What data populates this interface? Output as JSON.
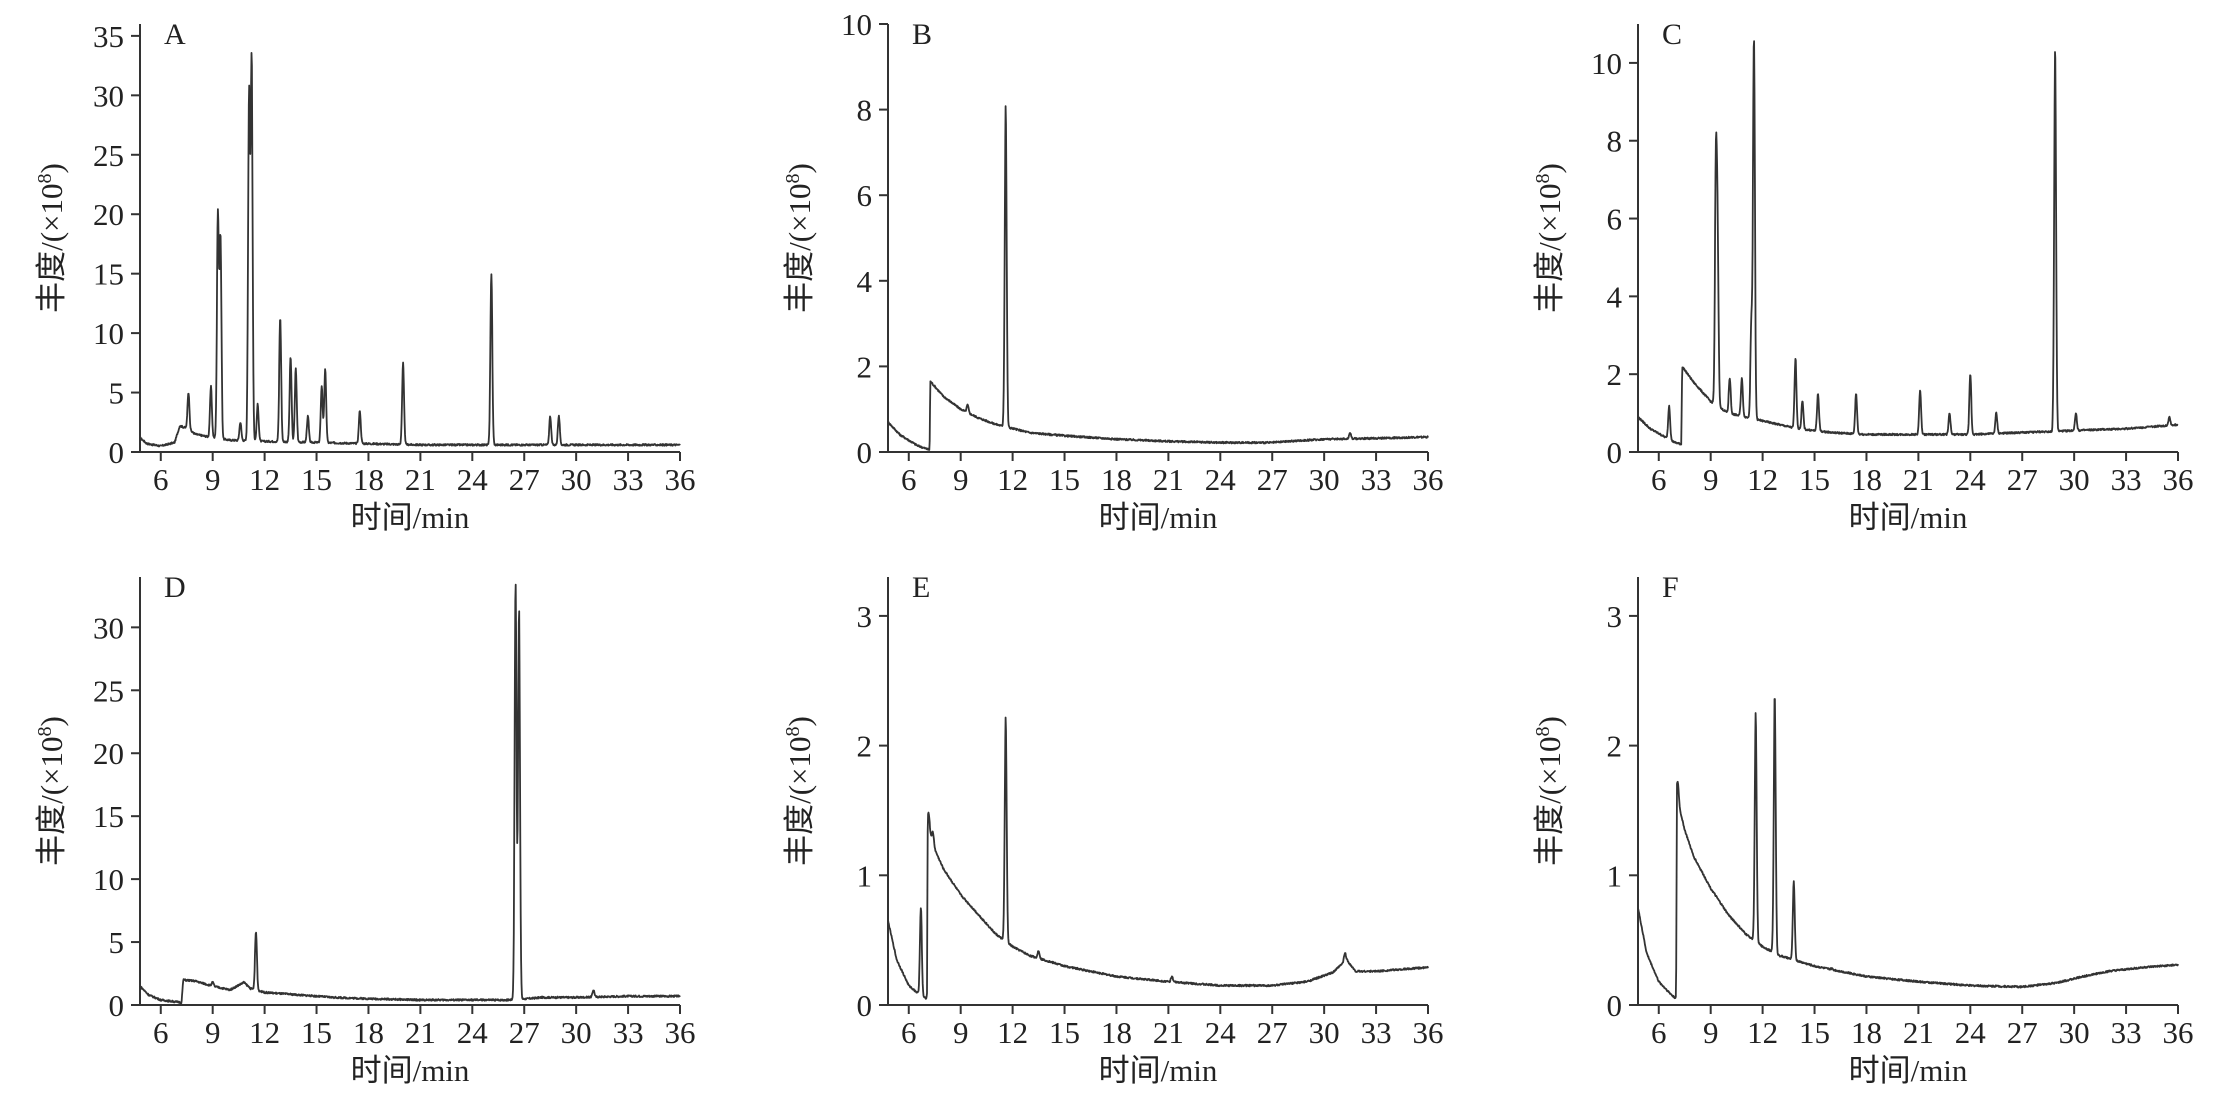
{
  "figure": {
    "axis_x_label": "时间/min",
    "axis_y_label_prefix": "丰度/",
    "axis_y_label_paren": "(×10",
    "axis_y_label_exp": "8",
    "axis_y_label_close": ")"
  },
  "chart_data": [
    {
      "type": "line",
      "panel": "A",
      "xlabel": "时间/min",
      "ylabel": "丰度/(×10⁸)",
      "xlim": [
        4.8,
        36
      ],
      "ylim": [
        0,
        36
      ],
      "x_ticks": [
        6,
        9,
        12,
        15,
        18,
        21,
        24,
        27,
        30,
        33,
        36
      ],
      "y_ticks": [
        0,
        5,
        10,
        15,
        20,
        25,
        30,
        35
      ],
      "baseline": [
        [
          4.8,
          1.2
        ],
        [
          5.2,
          0.7
        ],
        [
          6.0,
          0.5
        ],
        [
          6.8,
          0.8
        ],
        [
          7.1,
          2.2
        ],
        [
          7.5,
          2.0
        ],
        [
          8.0,
          1.5
        ],
        [
          9.0,
          1.2
        ],
        [
          10.0,
          1.0
        ],
        [
          12.0,
          0.9
        ],
        [
          15.0,
          0.8
        ],
        [
          18.0,
          0.7
        ],
        [
          21.0,
          0.6
        ],
        [
          24.0,
          0.6
        ],
        [
          27.0,
          0.6
        ],
        [
          30.0,
          0.6
        ],
        [
          33.0,
          0.6
        ],
        [
          36.0,
          0.6
        ]
      ],
      "peaks": [
        [
          7.6,
          5
        ],
        [
          8.9,
          5.5
        ],
        [
          9.3,
          20
        ],
        [
          9.45,
          18
        ],
        [
          10.6,
          2.5
        ],
        [
          11.1,
          30
        ],
        [
          11.25,
          33
        ],
        [
          11.6,
          4
        ],
        [
          12.9,
          11.3
        ],
        [
          13.5,
          8
        ],
        [
          13.8,
          7
        ],
        [
          14.5,
          3
        ],
        [
          15.3,
          5.5
        ],
        [
          15.5,
          7
        ],
        [
          17.5,
          3.5
        ],
        [
          20.0,
          7.5
        ],
        [
          25.1,
          15
        ],
        [
          28.5,
          3
        ],
        [
          29.0,
          3
        ]
      ]
    },
    {
      "type": "line",
      "panel": "B",
      "xlabel": "时间/min",
      "ylabel": "丰度/(×10⁸)",
      "xlim": [
        4.8,
        36
      ],
      "ylim": [
        0,
        10
      ],
      "x_ticks": [
        6,
        9,
        12,
        15,
        18,
        21,
        24,
        27,
        30,
        33,
        36
      ],
      "y_ticks": [
        0,
        2,
        4,
        6,
        8,
        10
      ],
      "baseline": [
        [
          4.8,
          0.7
        ],
        [
          5.5,
          0.4
        ],
        [
          6.5,
          0.15
        ],
        [
          7.2,
          0.05
        ],
        [
          7.25,
          1.65
        ],
        [
          8.0,
          1.3
        ],
        [
          9.0,
          1.0
        ],
        [
          10.0,
          0.8
        ],
        [
          11.0,
          0.65
        ],
        [
          12.0,
          0.55
        ],
        [
          13.0,
          0.45
        ],
        [
          15.0,
          0.38
        ],
        [
          18.0,
          0.3
        ],
        [
          21.0,
          0.25
        ],
        [
          24.0,
          0.22
        ],
        [
          27.0,
          0.22
        ],
        [
          28.0,
          0.25
        ],
        [
          30.0,
          0.3
        ],
        [
          33.0,
          0.32
        ],
        [
          36.0,
          0.35
        ]
      ],
      "peaks": [
        [
          9.4,
          1.1
        ],
        [
          11.6,
          8.1
        ],
        [
          31.5,
          0.45
        ]
      ]
    },
    {
      "type": "line",
      "panel": "C",
      "xlabel": "时间/min",
      "ylabel": "丰度/(×10⁸)",
      "xlim": [
        4.8,
        36
      ],
      "ylim": [
        0,
        11
      ],
      "x_ticks": [
        6,
        9,
        12,
        15,
        18,
        21,
        24,
        27,
        30,
        33,
        36
      ],
      "y_ticks": [
        0,
        2,
        4,
        6,
        8,
        10
      ],
      "baseline": [
        [
          4.8,
          0.9
        ],
        [
          5.5,
          0.6
        ],
        [
          6.3,
          0.4
        ],
        [
          6.9,
          0.25
        ],
        [
          7.3,
          0.2
        ],
        [
          7.35,
          2.2
        ],
        [
          8.0,
          1.8
        ],
        [
          9.0,
          1.3
        ],
        [
          10.0,
          1.0
        ],
        [
          11.0,
          0.9
        ],
        [
          12.0,
          0.8
        ],
        [
          14.0,
          0.6
        ],
        [
          16.0,
          0.5
        ],
        [
          18.0,
          0.45
        ],
        [
          21.0,
          0.45
        ],
        [
          24.0,
          0.45
        ],
        [
          27.0,
          0.5
        ],
        [
          30.0,
          0.55
        ],
        [
          33.0,
          0.6
        ],
        [
          36.0,
          0.7
        ]
      ],
      "peaks": [
        [
          6.6,
          1.2
        ],
        [
          9.3,
          7.2
        ],
        [
          9.4,
          5.2
        ],
        [
          10.1,
          1.9
        ],
        [
          10.8,
          1.9
        ],
        [
          11.5,
          10.6
        ],
        [
          11.35,
          3.3
        ],
        [
          13.9,
          2.4
        ],
        [
          14.3,
          1.3
        ],
        [
          15.2,
          1.5
        ],
        [
          17.4,
          1.5
        ],
        [
          21.1,
          1.6
        ],
        [
          22.8,
          1.0
        ],
        [
          24.0,
          2.0
        ],
        [
          25.5,
          1.0
        ],
        [
          28.9,
          10.4
        ],
        [
          30.1,
          1.0
        ],
        [
          35.5,
          0.9
        ]
      ]
    },
    {
      "type": "line",
      "panel": "D",
      "xlabel": "时间/min",
      "ylabel": "丰度/(×10⁸)",
      "xlim": [
        4.8,
        36
      ],
      "ylim": [
        0,
        34
      ],
      "x_ticks": [
        6,
        9,
        12,
        15,
        18,
        21,
        24,
        27,
        30,
        33,
        36
      ],
      "y_ticks": [
        0,
        5,
        10,
        15,
        20,
        25,
        30
      ],
      "baseline": [
        [
          4.8,
          1.5
        ],
        [
          5.3,
          0.8
        ],
        [
          6.0,
          0.4
        ],
        [
          7.2,
          0.2
        ],
        [
          7.3,
          2.0
        ],
        [
          8.0,
          1.9
        ],
        [
          9.0,
          1.5
        ],
        [
          10.0,
          1.2
        ],
        [
          10.8,
          1.8
        ],
        [
          11.2,
          1.3
        ],
        [
          12.0,
          1.0
        ],
        [
          14.0,
          0.8
        ],
        [
          16.0,
          0.6
        ],
        [
          18.0,
          0.5
        ],
        [
          21.0,
          0.4
        ],
        [
          24.0,
          0.4
        ],
        [
          26.0,
          0.4
        ],
        [
          27.2,
          0.5
        ],
        [
          28.0,
          0.6
        ],
        [
          30.0,
          0.6
        ],
        [
          33.0,
          0.7
        ],
        [
          36.0,
          0.7
        ]
      ],
      "peaks": [
        [
          9.0,
          1.8
        ],
        [
          11.5,
          5.8
        ],
        [
          26.5,
          33.5
        ],
        [
          26.7,
          31.5
        ],
        [
          31.0,
          1.2
        ]
      ]
    },
    {
      "type": "line",
      "panel": "E",
      "xlabel": "时间/min",
      "ylabel": "丰度/(×10⁸)",
      "xlim": [
        4.8,
        36
      ],
      "ylim": [
        0,
        3.3
      ],
      "x_ticks": [
        6,
        9,
        12,
        15,
        18,
        21,
        24,
        27,
        30,
        33,
        36
      ],
      "y_ticks": [
        0,
        1,
        2,
        3
      ],
      "baseline": [
        [
          4.8,
          0.65
        ],
        [
          5.3,
          0.35
        ],
        [
          6.0,
          0.15
        ],
        [
          6.8,
          0.06
        ],
        [
          7.05,
          0.05
        ],
        [
          7.1,
          1.38
        ],
        [
          7.5,
          1.2
        ],
        [
          8.0,
          1.05
        ],
        [
          9.0,
          0.85
        ],
        [
          10.0,
          0.7
        ],
        [
          11.0,
          0.55
        ],
        [
          12.0,
          0.45
        ],
        [
          13.0,
          0.38
        ],
        [
          15.0,
          0.3
        ],
        [
          18.0,
          0.22
        ],
        [
          21.0,
          0.18
        ],
        [
          24.0,
          0.15
        ],
        [
          27.0,
          0.15
        ],
        [
          29.0,
          0.18
        ],
        [
          30.5,
          0.25
        ],
        [
          31.3,
          0.35
        ],
        [
          31.8,
          0.26
        ],
        [
          33.0,
          0.26
        ],
        [
          36.0,
          0.29
        ]
      ],
      "peaks": [
        [
          6.7,
          0.75
        ],
        [
          7.15,
          1.48
        ],
        [
          7.4,
          1.33
        ],
        [
          10.8,
          0.58
        ],
        [
          11.6,
          2.22
        ],
        [
          13.5,
          0.42
        ],
        [
          21.2,
          0.22
        ],
        [
          31.2,
          0.4
        ]
      ]
    },
    {
      "type": "line",
      "panel": "F",
      "xlabel": "时间/min",
      "ylabel": "丰度/(×10⁸)",
      "xlim": [
        4.8,
        36
      ],
      "ylim": [
        0,
        3.3
      ],
      "x_ticks": [
        6,
        9,
        12,
        15,
        18,
        21,
        24,
        27,
        30,
        33,
        36
      ],
      "y_ticks": [
        0,
        1,
        2,
        3
      ],
      "baseline": [
        [
          4.8,
          0.75
        ],
        [
          5.3,
          0.4
        ],
        [
          6.0,
          0.18
        ],
        [
          6.8,
          0.07
        ],
        [
          7.0,
          0.05
        ],
        [
          7.05,
          1.6
        ],
        [
          7.5,
          1.35
        ],
        [
          8.0,
          1.15
        ],
        [
          9.0,
          0.9
        ],
        [
          10.0,
          0.7
        ],
        [
          11.0,
          0.55
        ],
        [
          12.0,
          0.45
        ],
        [
          13.0,
          0.38
        ],
        [
          15.0,
          0.3
        ],
        [
          18.0,
          0.22
        ],
        [
          21.0,
          0.18
        ],
        [
          24.0,
          0.15
        ],
        [
          27.0,
          0.14
        ],
        [
          29.0,
          0.17
        ],
        [
          30.5,
          0.22
        ],
        [
          32.0,
          0.26
        ],
        [
          34.0,
          0.29
        ],
        [
          36.0,
          0.31
        ]
      ],
      "peaks": [
        [
          7.1,
          1.72
        ],
        [
          11.0,
          0.55
        ],
        [
          11.6,
          2.25
        ],
        [
          12.7,
          2.4
        ],
        [
          13.8,
          0.95
        ],
        [
          16.0,
          0.28
        ]
      ]
    }
  ]
}
